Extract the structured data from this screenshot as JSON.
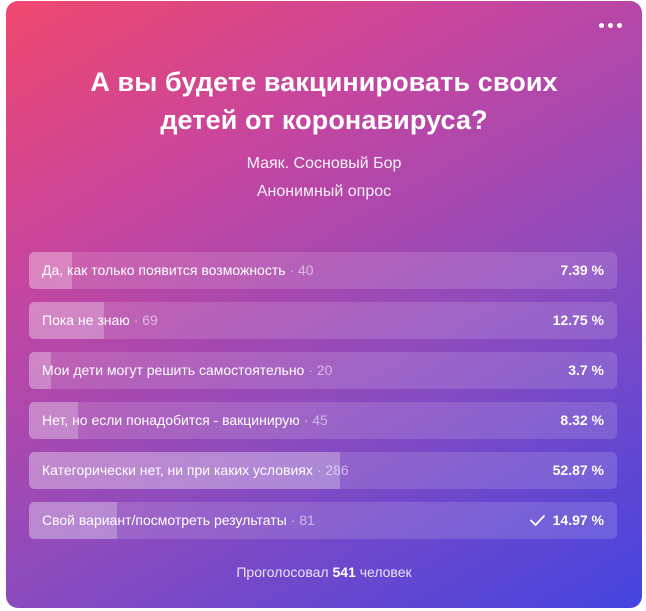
{
  "poll": {
    "title": "А вы будете вакцинировать своих детей от коронавируса?",
    "author": "Маяк. Сосновый Бор",
    "type": "Анонимный опрос",
    "options": [
      {
        "label": "Да, как только появится возможность",
        "count": "40",
        "percent": "7.39 %",
        "fraction": 0.0739,
        "checked": false
      },
      {
        "label": "Пока не знаю",
        "count": "69",
        "percent": "12.75 %",
        "fraction": 0.1275,
        "checked": false
      },
      {
        "label": "Мои дети могут решить самостоятельно",
        "count": "20",
        "percent": "3.7 %",
        "fraction": 0.037,
        "checked": false
      },
      {
        "label": "Нет, но если понадобится - вакцинирую",
        "count": "45",
        "percent": "8.32 %",
        "fraction": 0.0832,
        "checked": false
      },
      {
        "label": "Категорически нет, ни при каких условиях",
        "count": "286",
        "percent": "52.87 %",
        "fraction": 0.5287,
        "checked": false
      },
      {
        "label": "Свой вариант/посмотреть результаты",
        "count": "81",
        "percent": "14.97 %",
        "fraction": 0.1497,
        "checked": true
      }
    ],
    "footer": {
      "prefix": "Проголосовал",
      "total": "541",
      "suffix": "человек"
    }
  },
  "icons": {
    "more": "more-horizontal-icon",
    "check": "check-icon"
  }
}
